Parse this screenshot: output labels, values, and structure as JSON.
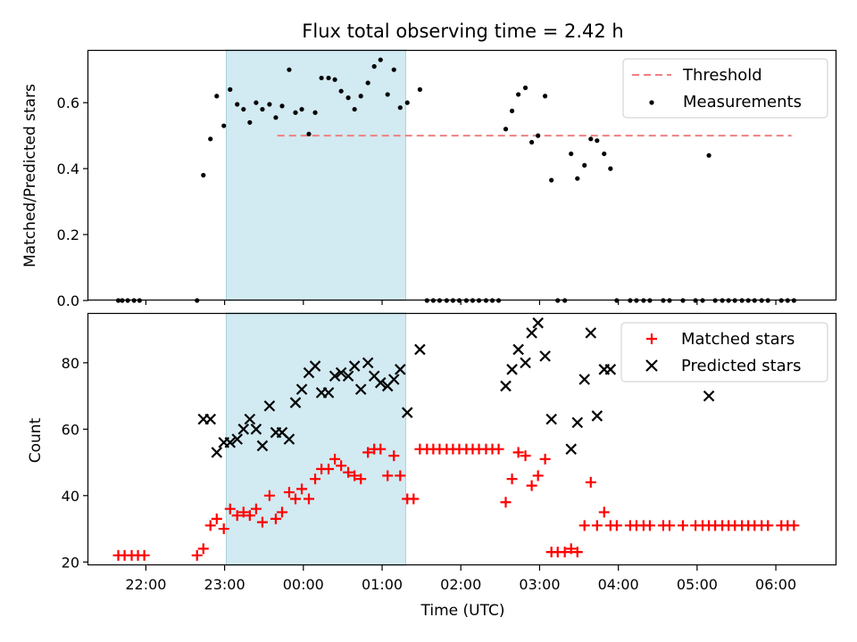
{
  "chart_data": [
    {
      "type": "scatter",
      "title": "Flux total observing time = 2.42 h",
      "ylabel": "Matched/Predicted stars",
      "xlabel": "",
      "ylim": [
        0.0,
        0.76
      ],
      "yticks": [
        "0.0",
        "0.2",
        "0.4",
        "0.6"
      ],
      "x_unit": "hours relative to 00:00 UTC",
      "shaded_interval": [
        -0.98,
        1.3
      ],
      "legend_position": "top-right",
      "threshold": {
        "name": "Threshold",
        "y": 0.5,
        "x_range": [
          -0.33,
          6.2
        ],
        "color": "#f08080"
      },
      "series": [
        {
          "name": "Measurements",
          "color": "#000000",
          "points": [
            [
              -2.35,
              0
            ],
            [
              -2.3,
              0
            ],
            [
              -2.23,
              0
            ],
            [
              -2.15,
              0
            ],
            [
              -2.08,
              0
            ],
            [
              -1.35,
              0
            ],
            [
              -1.27,
              0.38
            ],
            [
              -1.18,
              0.49
            ],
            [
              -1.1,
              0.62
            ],
            [
              -1.01,
              0.53
            ],
            [
              -0.93,
              0.64
            ],
            [
              -0.84,
              0.595
            ],
            [
              -0.76,
              0.58
            ],
            [
              -0.68,
              0.54
            ],
            [
              -0.6,
              0.6
            ],
            [
              -0.52,
              0.58
            ],
            [
              -0.43,
              0.595
            ],
            [
              -0.35,
              0.555
            ],
            [
              -0.27,
              0.59
            ],
            [
              -0.18,
              0.7
            ],
            [
              -0.1,
              0.57
            ],
            [
              -0.02,
              0.58
            ],
            [
              0.07,
              0.505
            ],
            [
              0.15,
              0.57
            ],
            [
              0.23,
              0.675
            ],
            [
              0.32,
              0.675
            ],
            [
              0.4,
              0.67
            ],
            [
              0.48,
              0.635
            ],
            [
              0.57,
              0.615
            ],
            [
              0.65,
              0.58
            ],
            [
              0.73,
              0.62
            ],
            [
              0.82,
              0.66
            ],
            [
              0.9,
              0.71
            ],
            [
              0.98,
              0.73
            ],
            [
              1.07,
              0.625
            ],
            [
              1.15,
              0.7
            ],
            [
              1.23,
              0.585
            ],
            [
              1.32,
              0.6
            ],
            [
              1.48,
              0.64
            ],
            [
              1.57,
              0
            ],
            [
              1.65,
              0
            ],
            [
              1.73,
              0
            ],
            [
              1.82,
              0
            ],
            [
              1.9,
              0
            ],
            [
              1.98,
              0
            ],
            [
              2.07,
              0
            ],
            [
              2.15,
              0
            ],
            [
              2.23,
              0
            ],
            [
              2.32,
              0
            ],
            [
              2.4,
              0
            ],
            [
              2.48,
              0
            ],
            [
              2.57,
              0.52
            ],
            [
              2.65,
              0.575
            ],
            [
              2.73,
              0.625
            ],
            [
              2.82,
              0.645
            ],
            [
              2.9,
              0.48
            ],
            [
              2.98,
              0.5
            ],
            [
              3.07,
              0.62
            ],
            [
              3.15,
              0.365
            ],
            [
              3.23,
              0
            ],
            [
              3.32,
              0
            ],
            [
              3.4,
              0.445
            ],
            [
              3.48,
              0.37
            ],
            [
              3.57,
              0.41
            ],
            [
              3.65,
              0.49
            ],
            [
              3.73,
              0.485
            ],
            [
              3.82,
              0.445
            ],
            [
              3.9,
              0.4
            ],
            [
              3.98,
              0
            ],
            [
              4.15,
              0
            ],
            [
              4.23,
              0
            ],
            [
              4.32,
              0
            ],
            [
              4.4,
              0
            ],
            [
              4.57,
              0
            ],
            [
              4.65,
              0
            ],
            [
              4.82,
              0
            ],
            [
              4.98,
              0
            ],
            [
              5.07,
              0
            ],
            [
              5.15,
              0.44
            ],
            [
              5.23,
              0
            ],
            [
              5.32,
              0
            ],
            [
              5.4,
              0
            ],
            [
              5.48,
              0
            ],
            [
              5.57,
              0
            ],
            [
              5.65,
              0
            ],
            [
              5.73,
              0
            ],
            [
              5.82,
              0
            ],
            [
              5.9,
              0
            ],
            [
              6.07,
              0
            ],
            [
              6.15,
              0
            ],
            [
              6.23,
              0
            ]
          ]
        }
      ]
    },
    {
      "type": "scatter",
      "title": "",
      "ylabel": "Count",
      "xlabel": "Time (UTC)",
      "ylim": [
        19,
        95
      ],
      "yticks": [
        "20",
        "40",
        "60",
        "80"
      ],
      "xlim": [
        -2.73,
        6.77
      ],
      "xticks": [
        {
          "x": -2,
          "label": "22:00"
        },
        {
          "x": -1,
          "label": "23:00"
        },
        {
          "x": 0,
          "label": "00:00"
        },
        {
          "x": 1,
          "label": "01:00"
        },
        {
          "x": 2,
          "label": "02:00"
        },
        {
          "x": 3,
          "label": "03:00"
        },
        {
          "x": 4,
          "label": "04:00"
        },
        {
          "x": 5,
          "label": "05:00"
        },
        {
          "x": 6,
          "label": "06:00"
        }
      ],
      "shaded_interval": [
        -0.98,
        1.3
      ],
      "legend_position": "top-right",
      "series": [
        {
          "name": "Matched stars",
          "marker": "plus",
          "color": "#ff0000",
          "points": [
            [
              -2.35,
              22
            ],
            [
              -2.27,
              22
            ],
            [
              -2.18,
              22
            ],
            [
              -2.1,
              22
            ],
            [
              -2.02,
              22
            ],
            [
              -1.35,
              22
            ],
            [
              -1.27,
              24
            ],
            [
              -1.18,
              31
            ],
            [
              -1.1,
              33
            ],
            [
              -1.01,
              30
            ],
            [
              -0.93,
              36
            ],
            [
              -0.84,
              34
            ],
            [
              -0.76,
              35
            ],
            [
              -0.68,
              34
            ],
            [
              -0.6,
              36
            ],
            [
              -0.52,
              32
            ],
            [
              -0.43,
              40
            ],
            [
              -0.35,
              33
            ],
            [
              -0.27,
              35
            ],
            [
              -0.18,
              41
            ],
            [
              -0.1,
              39
            ],
            [
              -0.02,
              42
            ],
            [
              0.07,
              39
            ],
            [
              0.15,
              45
            ],
            [
              0.23,
              48
            ],
            [
              0.32,
              48
            ],
            [
              0.4,
              51
            ],
            [
              0.48,
              49
            ],
            [
              0.57,
              47
            ],
            [
              0.65,
              46
            ],
            [
              0.73,
              45
            ],
            [
              0.82,
              53
            ],
            [
              0.9,
              54
            ],
            [
              0.98,
              54
            ],
            [
              1.07,
              46
            ],
            [
              1.15,
              52
            ],
            [
              1.23,
              46
            ],
            [
              1.32,
              39
            ],
            [
              1.4,
              39
            ],
            [
              1.48,
              54
            ],
            [
              1.57,
              54
            ],
            [
              1.65,
              54
            ],
            [
              1.73,
              54
            ],
            [
              1.82,
              54
            ],
            [
              1.9,
              54
            ],
            [
              1.98,
              54
            ],
            [
              2.07,
              54
            ],
            [
              2.15,
              54
            ],
            [
              2.23,
              54
            ],
            [
              2.32,
              54
            ],
            [
              2.4,
              54
            ],
            [
              2.48,
              54
            ],
            [
              2.57,
              38
            ],
            [
              2.65,
              45
            ],
            [
              2.73,
              53
            ],
            [
              2.82,
              52
            ],
            [
              2.9,
              43
            ],
            [
              2.98,
              46
            ],
            [
              3.07,
              51
            ],
            [
              3.15,
              23
            ],
            [
              3.23,
              23
            ],
            [
              3.32,
              23
            ],
            [
              3.4,
              24
            ],
            [
              3.48,
              23
            ],
            [
              3.57,
              31
            ],
            [
              3.65,
              44
            ],
            [
              3.73,
              31
            ],
            [
              3.82,
              35
            ],
            [
              3.9,
              31
            ],
            [
              3.98,
              31
            ],
            [
              4.15,
              31
            ],
            [
              4.23,
              31
            ],
            [
              4.32,
              31
            ],
            [
              4.4,
              31
            ],
            [
              4.57,
              31
            ],
            [
              4.65,
              31
            ],
            [
              4.82,
              31
            ],
            [
              4.98,
              31
            ],
            [
              5.07,
              31
            ],
            [
              5.15,
              31
            ],
            [
              5.23,
              31
            ],
            [
              5.32,
              31
            ],
            [
              5.4,
              31
            ],
            [
              5.48,
              31
            ],
            [
              5.57,
              31
            ],
            [
              5.65,
              31
            ],
            [
              5.73,
              31
            ],
            [
              5.82,
              31
            ],
            [
              5.9,
              31
            ],
            [
              6.07,
              31
            ],
            [
              6.15,
              31
            ],
            [
              6.23,
              31
            ]
          ]
        },
        {
          "name": "Predicted stars",
          "marker": "x",
          "color": "#000000",
          "points": [
            [
              -1.27,
              63
            ],
            [
              -1.18,
              63
            ],
            [
              -1.1,
              53
            ],
            [
              -1.01,
              56
            ],
            [
              -0.93,
              56
            ],
            [
              -0.84,
              57
            ],
            [
              -0.76,
              60
            ],
            [
              -0.68,
              63
            ],
            [
              -0.6,
              60
            ],
            [
              -0.52,
              55
            ],
            [
              -0.43,
              67
            ],
            [
              -0.35,
              59
            ],
            [
              -0.27,
              59
            ],
            [
              -0.18,
              57
            ],
            [
              -0.1,
              68
            ],
            [
              -0.02,
              72
            ],
            [
              0.07,
              77
            ],
            [
              0.15,
              79
            ],
            [
              0.23,
              71
            ],
            [
              0.32,
              71
            ],
            [
              0.4,
              76
            ],
            [
              0.48,
              77
            ],
            [
              0.57,
              76
            ],
            [
              0.65,
              79
            ],
            [
              0.73,
              72
            ],
            [
              0.82,
              80
            ],
            [
              0.9,
              76
            ],
            [
              0.98,
              74
            ],
            [
              1.07,
              73
            ],
            [
              1.15,
              75
            ],
            [
              1.23,
              78
            ],
            [
              1.32,
              65
            ],
            [
              1.48,
              84
            ],
            [
              2.57,
              73
            ],
            [
              2.65,
              78
            ],
            [
              2.73,
              84
            ],
            [
              2.82,
              80
            ],
            [
              2.9,
              89
            ],
            [
              2.98,
              92
            ],
            [
              3.07,
              82
            ],
            [
              3.15,
              63
            ],
            [
              3.4,
              54
            ],
            [
              3.48,
              62
            ],
            [
              3.57,
              75
            ],
            [
              3.65,
              89
            ],
            [
              3.73,
              64
            ],
            [
              3.82,
              78
            ],
            [
              3.9,
              78
            ],
            [
              5.15,
              70
            ]
          ]
        }
      ]
    }
  ]
}
